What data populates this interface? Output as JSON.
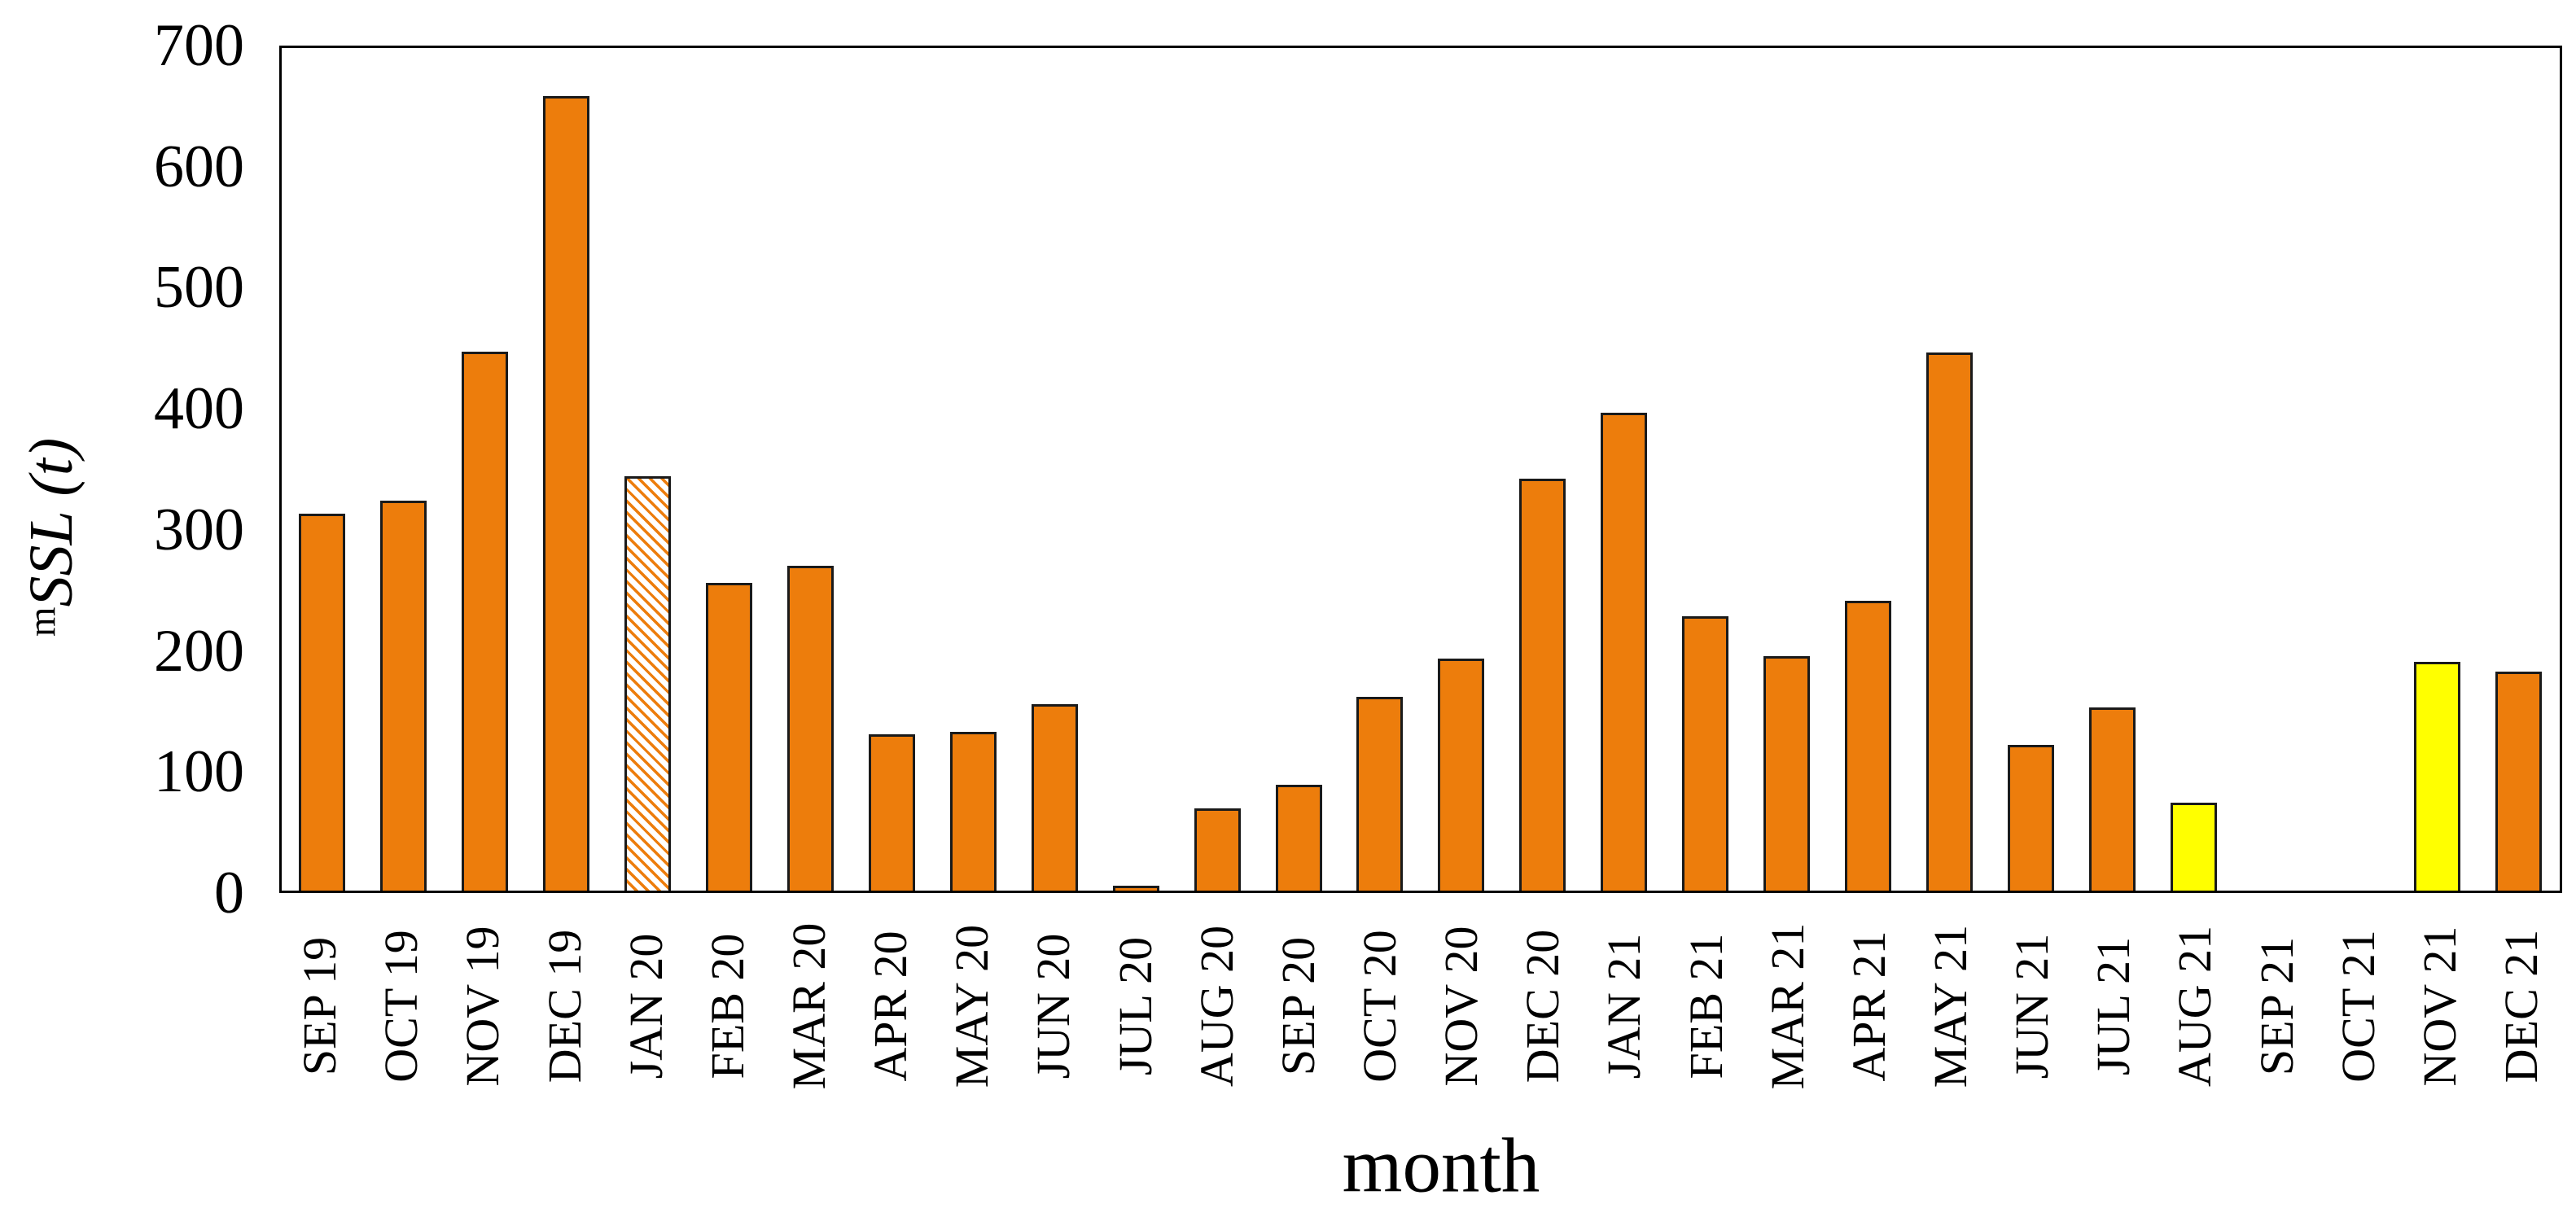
{
  "figure": {
    "background_color": "#ffffff",
    "y_axis_title": {
      "prefix": "m",
      "main": "SSL",
      "unit": " (t)"
    },
    "x_axis_title": "month"
  },
  "chart_data": {
    "type": "bar",
    "title": "",
    "xlabel": "month",
    "ylabel": "mSSL (t)",
    "ylim": [
      0,
      700
    ],
    "yticks": [
      0,
      100,
      200,
      300,
      400,
      500,
      600,
      700
    ],
    "grid": false,
    "legend": "none",
    "categories": [
      "SEP 19",
      "OCT 19",
      "NOV 19",
      "DEC 19",
      "JAN 20",
      "FEB 20",
      "MAR 20",
      "APR 20",
      "MAY 20",
      "JUN 20",
      "JUL 20",
      "AUG 20",
      "SEP 20",
      "OCT 20",
      "NOV 20",
      "DEC 20",
      "JAN 21",
      "FEB 21",
      "MAR 21",
      "APR 21",
      "MAY 21",
      "JUN 21",
      "JUL 21",
      "AUG 21",
      "SEP 21",
      "OCT 21",
      "NOV 21",
      "DEC 21"
    ],
    "values": [
      313,
      324,
      448,
      660,
      344,
      256,
      270,
      130,
      132,
      155,
      4,
      68,
      88,
      161,
      193,
      342,
      397,
      228,
      195,
      241,
      447,
      121,
      152,
      73,
      0,
      0,
      190,
      182
    ],
    "bar_styles": {
      "default_fill": "#ED7D0C",
      "outline_color": "#1a1a1a",
      "yellow_fill": "#FFFF00",
      "yellow_categories": [
        "AUG 21",
        "NOV 21"
      ],
      "hatched_categories": [
        "JAN 20"
      ],
      "hatch_pattern": "diagonal orange stripes on white"
    }
  }
}
